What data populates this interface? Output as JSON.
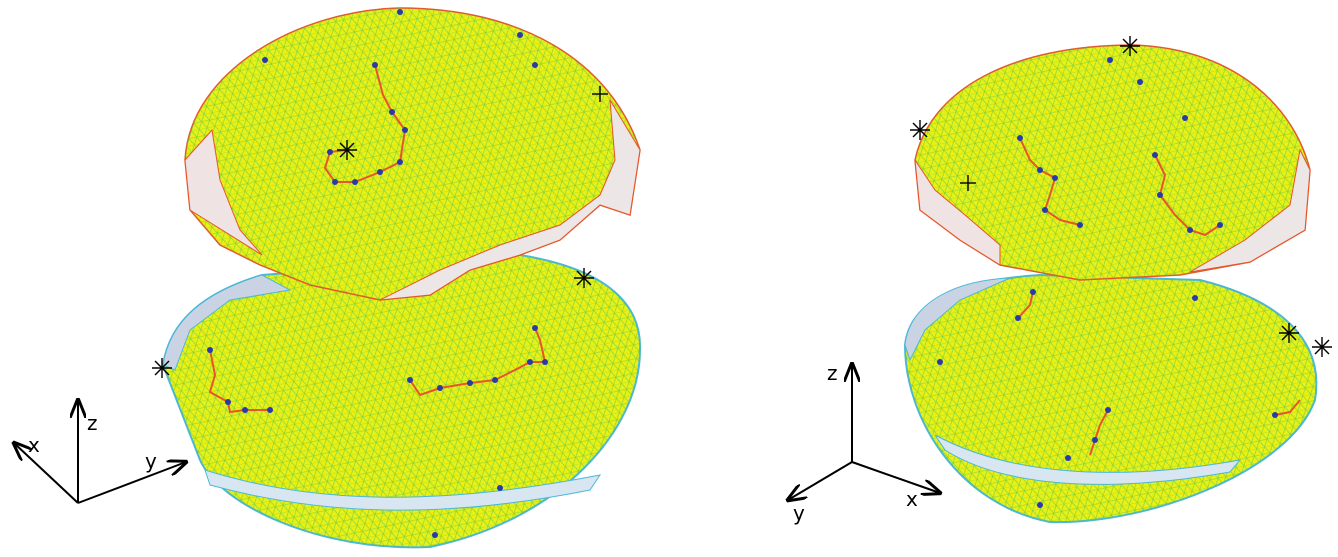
{
  "panels": [
    {
      "axes": {
        "x": "x",
        "y": "y",
        "z": "z"
      }
    },
    {
      "axes": {
        "x": "x",
        "y": "y",
        "z": "z"
      }
    }
  ]
}
